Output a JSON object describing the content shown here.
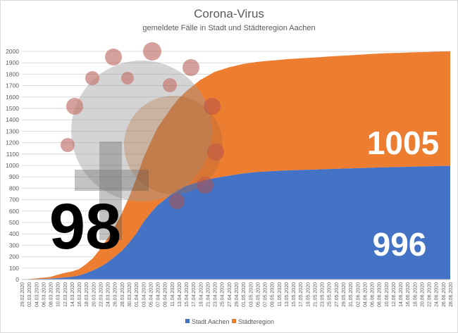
{
  "chart_data": {
    "type": "area",
    "stacked": true,
    "title": "Corona-Virus",
    "subtitle": "gemeldete Fälle in Stadt und Städteregion Aachen",
    "ylim": [
      0,
      2000
    ],
    "yticks": [
      0,
      100,
      200,
      300,
      400,
      500,
      600,
      700,
      800,
      900,
      1000,
      1100,
      1200,
      1300,
      1400,
      1500,
      1600,
      1700,
      1800,
      1900,
      2000
    ],
    "grid": true,
    "legend_position": "bottom",
    "categories": [
      "29.02.2020",
      "02.03.2020",
      "04.03.2020",
      "06.03.2020",
      "08.03.2020",
      "10.03.2020",
      "12.03.2020",
      "14.03.2020",
      "16.03.2020",
      "18.03.2020",
      "20.03.2020",
      "22.03.2020",
      "24.03.2020",
      "26.03.2020",
      "28.03.2020",
      "30.03.2020",
      "01.04.2020",
      "03.04.2020",
      "05.04.2020",
      "07.04.2020",
      "09.04.2020",
      "11.04.2020",
      "13.04.2020",
      "15.04.2020",
      "17.04.2020",
      "19.04.2020",
      "21.04.2020",
      "23.04.2020",
      "25.04.2020",
      "27.04.2020",
      "29.04.2020",
      "01.05.2020",
      "03.05.2020",
      "05.05.2020",
      "07.05.2020",
      "09.05.2020",
      "11.05.2020",
      "13.05.2020",
      "15.05.2020",
      "17.05.2020",
      "19.05.2020",
      "21.05.2020",
      "23.05.2020",
      "25.05.2020",
      "27.05.2020",
      "29.05.2020",
      "31.05.2020",
      "02.06.2020",
      "04.06.2020",
      "06.06.2020",
      "08.06.2020",
      "10.06.2020",
      "12.06.2020",
      "14.06.2020",
      "16.06.2020",
      "18.06.2020",
      "20.06.2020",
      "22.06.2020",
      "24.06.2020",
      "26.06.2020",
      "28.06.2020"
    ],
    "series": [
      {
        "name": "Stadt Aachen",
        "color": "#4472c4",
        "values": [
          0,
          2,
          4,
          6,
          8,
          12,
          18,
          24,
          35,
          55,
          80,
          110,
          150,
          200,
          250,
          320,
          400,
          500,
          580,
          650,
          700,
          750,
          790,
          820,
          840,
          860,
          875,
          890,
          900,
          910,
          920,
          930,
          937,
          942,
          946,
          950,
          953,
          956,
          958,
          960,
          962,
          964,
          966,
          968,
          970,
          972,
          974,
          976,
          978,
          980,
          982,
          984,
          985,
          986,
          988,
          990,
          991,
          992,
          994,
          995,
          996
        ]
      },
      {
        "name": "Städteregion",
        "color": "#ed7d31",
        "values": [
          0,
          3,
          6,
          10,
          14,
          30,
          40,
          46,
          55,
          80,
          110,
          160,
          210,
          260,
          330,
          400,
          480,
          560,
          620,
          680,
          720,
          760,
          800,
          830,
          860,
          890,
          910,
          930,
          940,
          950,
          955,
          960,
          963,
          966,
          968,
          970,
          972,
          975,
          977,
          979,
          981,
          983,
          985,
          987,
          989,
          990,
          992,
          994,
          996,
          998,
          999,
          1000,
          1001,
          1001,
          1002,
          1002,
          1003,
          1003,
          1004,
          1004,
          1005
        ]
      }
    ],
    "annotations": {
      "county_value": "1005",
      "city_value": "996",
      "overlay_number": "98"
    }
  }
}
